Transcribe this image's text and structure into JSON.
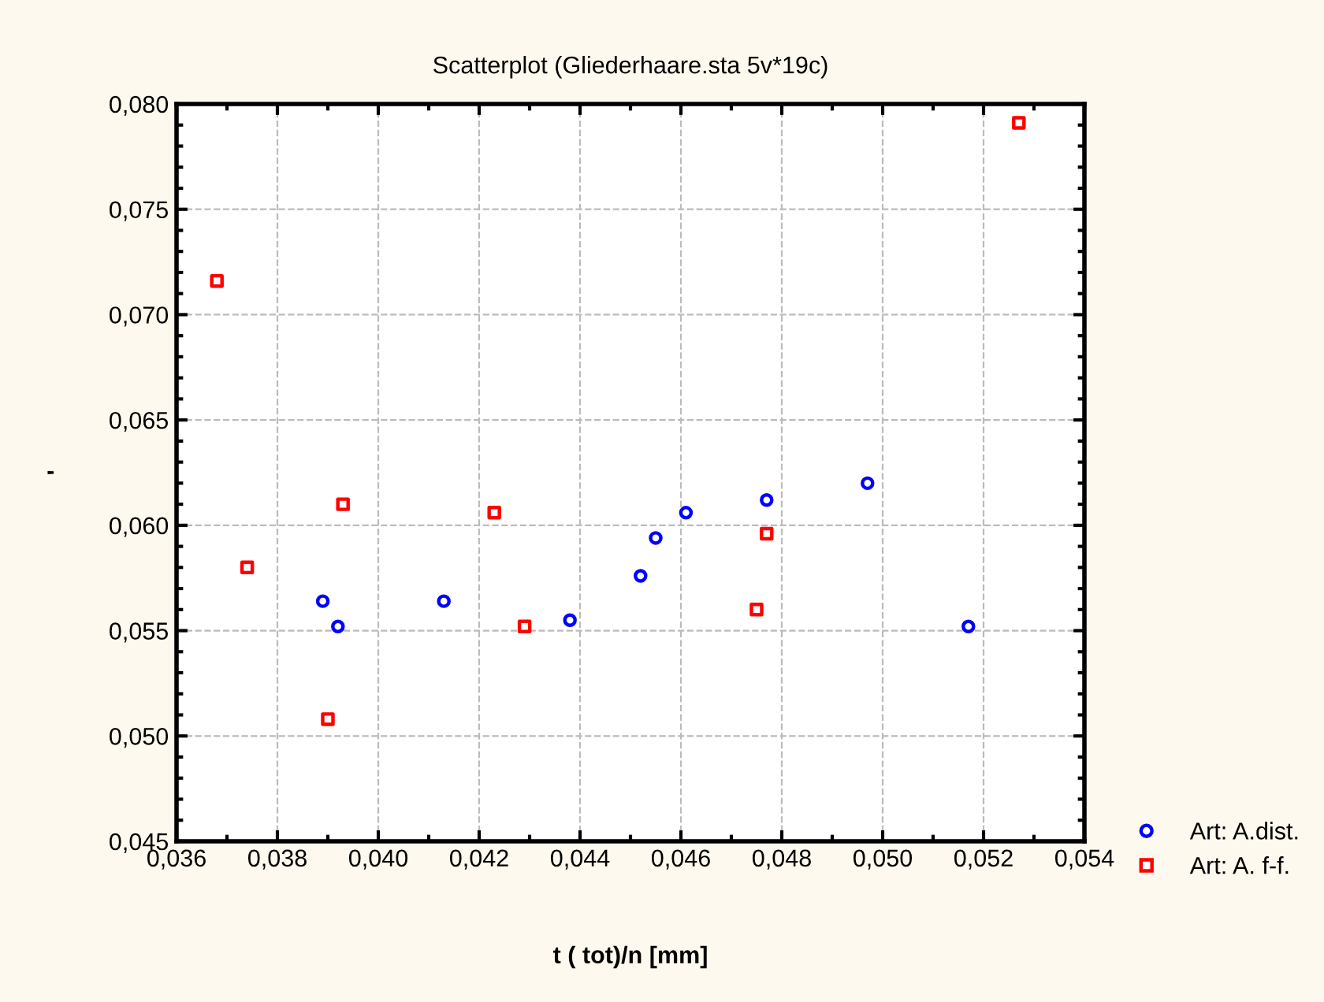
{
  "chart_data": {
    "type": "scatter",
    "title": "Scatterplot (Gliederhaare.sta 5v*19c)",
    "xlabel": "t ( tot)/n [mm]",
    "ylabel": "'",
    "xlim": [
      0.036,
      0.054
    ],
    "ylim": [
      0.045,
      0.08
    ],
    "xticks": [
      {
        "value": 0.036,
        "label": "0,036"
      },
      {
        "value": 0.038,
        "label": "0,038"
      },
      {
        "value": 0.04,
        "label": "0,040"
      },
      {
        "value": 0.042,
        "label": "0,042"
      },
      {
        "value": 0.044,
        "label": "0,044"
      },
      {
        "value": 0.046,
        "label": "0,046"
      },
      {
        "value": 0.048,
        "label": "0,048"
      },
      {
        "value": 0.05,
        "label": "0,050"
      },
      {
        "value": 0.052,
        "label": "0,052"
      },
      {
        "value": 0.054,
        "label": "0,054"
      }
    ],
    "yticks": [
      {
        "value": 0.045,
        "label": "0,045"
      },
      {
        "value": 0.05,
        "label": "0,050"
      },
      {
        "value": 0.055,
        "label": "0,055"
      },
      {
        "value": 0.06,
        "label": "0,060"
      },
      {
        "value": 0.065,
        "label": "0,065"
      },
      {
        "value": 0.07,
        "label": "0,070"
      },
      {
        "value": 0.075,
        "label": "0,075"
      },
      {
        "value": 0.08,
        "label": "0,080"
      }
    ],
    "grid": true,
    "legend": "bottom right",
    "series": [
      {
        "name": "Art: A.dist.",
        "color": "#0000ff",
        "marker": "circle",
        "x": [
          0.0389,
          0.0392,
          0.0413,
          0.0438,
          0.0452,
          0.0455,
          0.0461,
          0.0477,
          0.0497,
          0.0517
        ],
        "values": [
          0.0564,
          0.0552,
          0.0564,
          0.0555,
          0.0576,
          0.0594,
          0.0606,
          0.0612,
          0.062,
          0.0552
        ]
      },
      {
        "name": "Art: A. f-f.",
        "color": "#ff0000",
        "marker": "square",
        "x": [
          0.0368,
          0.0374,
          0.0393,
          0.039,
          0.0423,
          0.0429,
          0.0477,
          0.0475,
          0.0527
        ],
        "values": [
          0.0716,
          0.058,
          0.061,
          0.0508,
          0.0606,
          0.0552,
          0.0596,
          0.056,
          0.0791
        ]
      }
    ]
  }
}
